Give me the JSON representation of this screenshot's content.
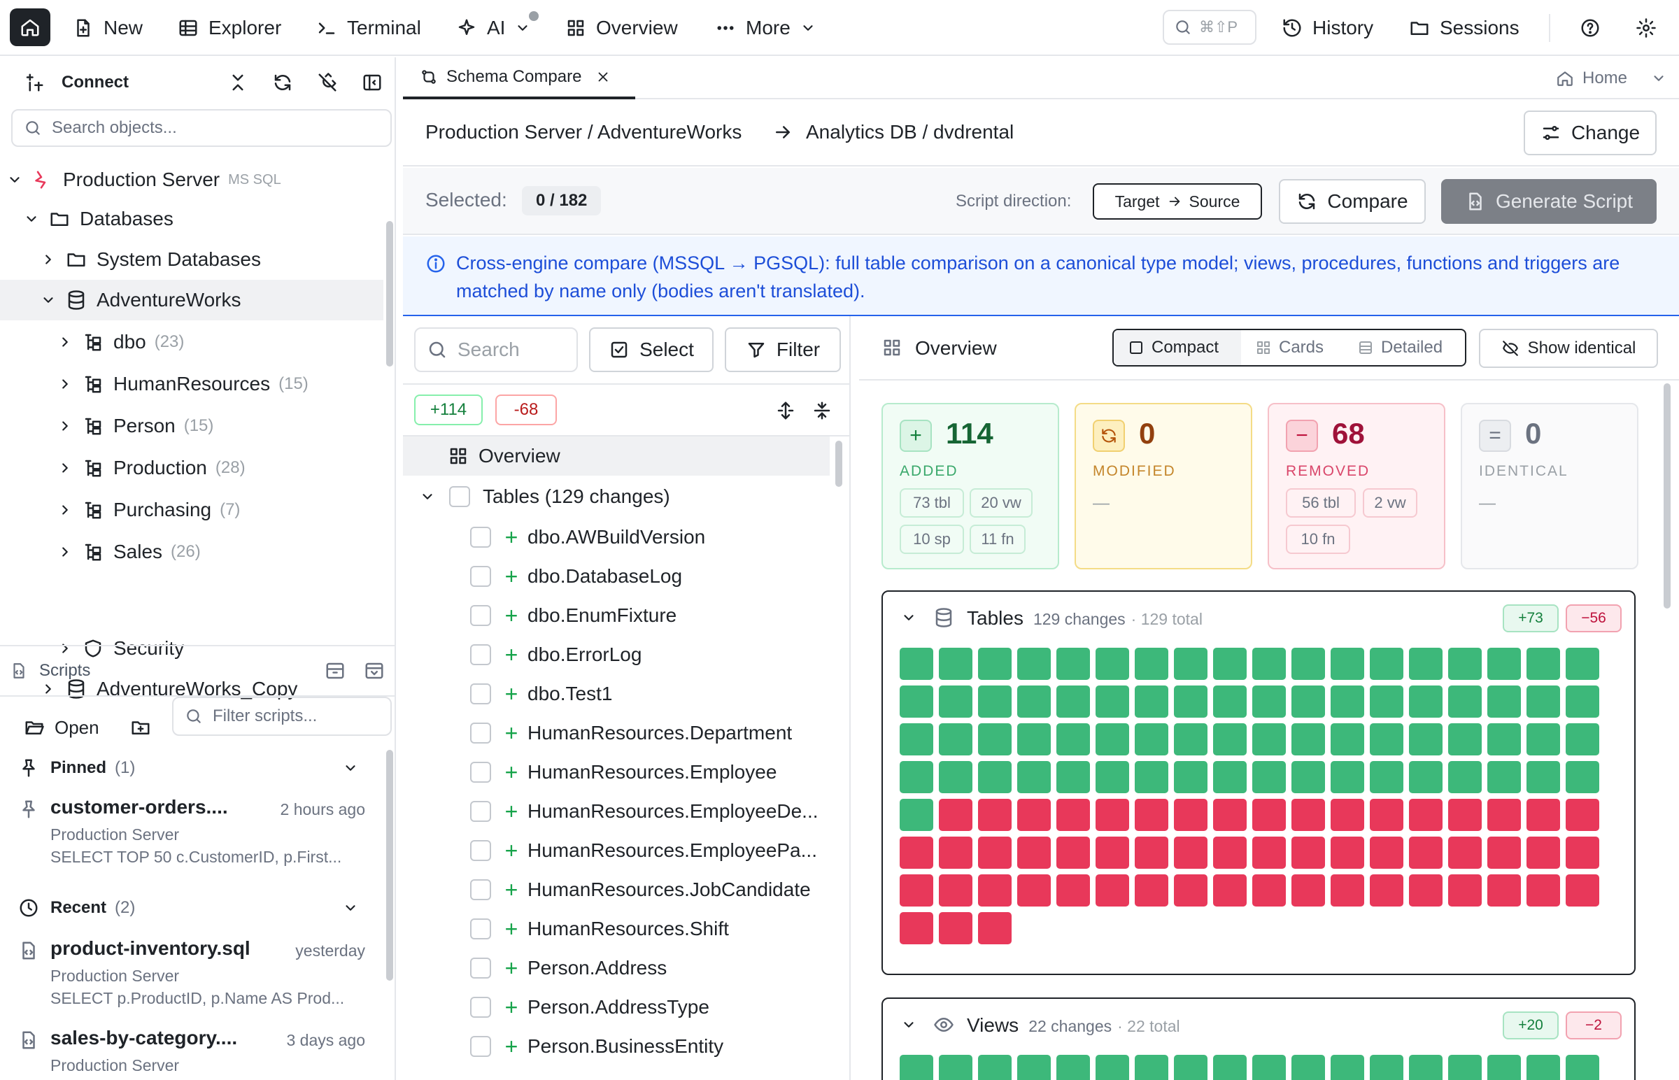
{
  "topbar": {
    "new": "New",
    "explorer": "Explorer",
    "terminal": "Terminal",
    "ai": "AI",
    "overview": "Overview",
    "more": "More",
    "shortcut": "⌘⇧P",
    "history": "History",
    "sessions": "Sessions"
  },
  "left": {
    "connect": "Connect",
    "search_placeholder": "Search objects...",
    "server": {
      "name": "Production Server",
      "engine": "MS SQL"
    },
    "databases": "Databases",
    "system_databases": "System Databases",
    "adventureworks": "AdventureWorks",
    "schemas": [
      {
        "name": "dbo",
        "count": "(23)"
      },
      {
        "name": "HumanResources",
        "count": "(15)"
      },
      {
        "name": "Person",
        "count": "(15)"
      },
      {
        "name": "Production",
        "count": "(28)"
      },
      {
        "name": "Purchasing",
        "count": "(7)"
      },
      {
        "name": "Sales",
        "count": "(26)"
      }
    ],
    "security": "Security",
    "adventureworks_copy": "AdventureWorks_Copy"
  },
  "scripts": {
    "title": "Scripts",
    "open": "Open",
    "filter_placeholder": "Filter scripts...",
    "pinned": {
      "label": "Pinned",
      "count": "(1)"
    },
    "recent": {
      "label": "Recent",
      "count": "(2)"
    },
    "items": [
      {
        "title": "customer-orders....",
        "time": "2 hours ago",
        "server": "Production Server",
        "sql": "SELECT TOP 50 c.CustomerID, p.First..."
      },
      {
        "title": "product-inventory.sql",
        "time": "yesterday",
        "server": "Production Server",
        "sql": "SELECT p.ProductID, p.Name AS Prod..."
      },
      {
        "title": "sales-by-category....",
        "time": "3 days ago",
        "server": "Production Server"
      }
    ]
  },
  "tabs": {
    "active": "Schema Compare",
    "home": "Home"
  },
  "path": {
    "source": "Production Server / AdventureWorks",
    "target": "Analytics DB / dvdrental",
    "change": "Change"
  },
  "selection": {
    "label": "Selected:",
    "value": "0 / 182",
    "direction_label": "Script direction:",
    "direction_from": "Target",
    "direction_to": "Source",
    "compare": "Compare",
    "generate": "Generate Script"
  },
  "info": "Cross-engine compare (MSSQL → PGSQL): full table comparison on a canonical type model; views, procedures, functions and triggers are matched by name only (bodies aren't translated).",
  "list": {
    "search_placeholder": "Search",
    "select": "Select",
    "filter": "Filter",
    "added_badge": "+114",
    "removed_badge": "-68",
    "overview": "Overview",
    "tables_group": "Tables (129 changes)",
    "items": [
      "dbo.AWBuildVersion",
      "dbo.DatabaseLog",
      "dbo.EnumFixture",
      "dbo.ErrorLog",
      "dbo.Test1",
      "HumanResources.Department",
      "HumanResources.Employee",
      "HumanResources.EmployeeDe...",
      "HumanResources.EmployeePa...",
      "HumanResources.JobCandidate",
      "HumanResources.Shift",
      "Person.Address",
      "Person.AddressType",
      "Person.BusinessEntity"
    ]
  },
  "overview": {
    "title": "Overview",
    "views": [
      "Compact",
      "Cards",
      "Detailed"
    ],
    "show_identical": "Show identical",
    "cards": {
      "added": {
        "value": "114",
        "label": "ADDED",
        "chips": [
          "73 tbl",
          "20 vw",
          "10 sp",
          "11 fn"
        ]
      },
      "modified": {
        "value": "0",
        "label": "MODIFIED",
        "dash": "—"
      },
      "removed": {
        "value": "68",
        "label": "REMOVED",
        "chips": [
          "56 tbl",
          "2 vw",
          "10 fn"
        ]
      },
      "identical": {
        "value": "0",
        "label": "IDENTICAL",
        "dash": "—"
      }
    },
    "tables_panel": {
      "title": "Tables",
      "changes": "129 changes",
      "total": "· 129 total",
      "added": "+73",
      "removed": "−56",
      "added_count": 73,
      "removed_count": 56
    },
    "views_panel": {
      "title": "Views",
      "changes": "22 changes",
      "total": "· 22 total",
      "added": "+20",
      "removed": "−2",
      "added_count": 20,
      "removed_count": 2
    }
  },
  "colors": {
    "added": "#3db87a",
    "removed": "#e8385a",
    "accent": "#1d4ed8"
  }
}
